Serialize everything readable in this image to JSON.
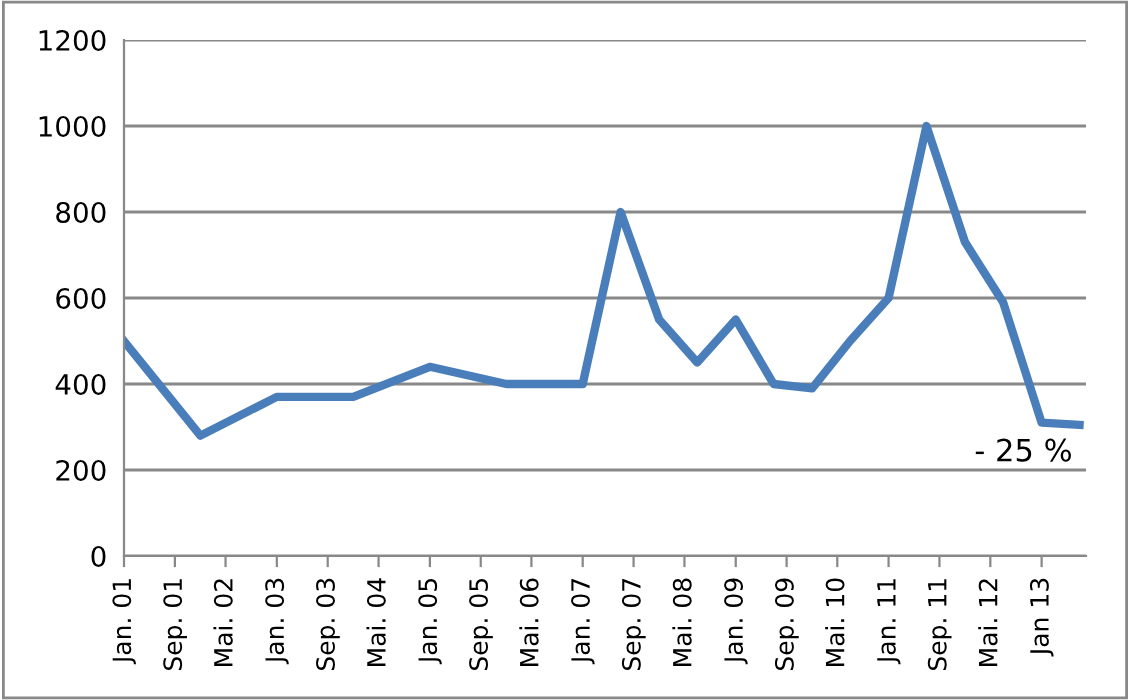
{
  "chart_data": {
    "type": "line",
    "x": [
      "2001-01",
      "2002-01",
      "2003-01",
      "2004-01",
      "2005-01",
      "2006-01",
      "2007-01",
      "2007-07",
      "2008-01",
      "2008-07",
      "2009-01",
      "2009-07",
      "2010-01",
      "2010-07",
      "2011-01",
      "2011-07",
      "2012-01",
      "2012-07",
      "2013-01",
      "2013-07"
    ],
    "series": [
      {
        "color": "#4a7ebb",
        "values": [
          500,
          280,
          370,
          370,
          440,
          400,
          400,
          800,
          550,
          450,
          550,
          400,
          390,
          500,
          600,
          1000,
          730,
          590,
          310,
          305
        ]
      }
    ],
    "xlim": [
      "2001-01",
      "2013-08"
    ],
    "xticks": [
      {
        "value": "2001-01",
        "label": "Jan. 01"
      },
      {
        "value": "2001-09",
        "label": "Sep. 01"
      },
      {
        "value": "2002-05",
        "label": "Mai. 02"
      },
      {
        "value": "2003-01",
        "label": "Jan. 03"
      },
      {
        "value": "2003-09",
        "label": "Sep. 03"
      },
      {
        "value": "2004-05",
        "label": "Mai. 04"
      },
      {
        "value": "2005-01",
        "label": "Jan. 05"
      },
      {
        "value": "2005-09",
        "label": "Sep. 05"
      },
      {
        "value": "2006-05",
        "label": "Mai. 06"
      },
      {
        "value": "2007-01",
        "label": "Jan. 07"
      },
      {
        "value": "2007-09",
        "label": "Sep. 07"
      },
      {
        "value": "2008-05",
        "label": "Mai. 08"
      },
      {
        "value": "2009-01",
        "label": "Jan. 09"
      },
      {
        "value": "2009-09",
        "label": "Sep. 09"
      },
      {
        "value": "2010-05",
        "label": "Mai. 10"
      },
      {
        "value": "2011-01",
        "label": "Jan. 11"
      },
      {
        "value": "2011-09",
        "label": "Sep. 11"
      },
      {
        "value": "2012-05",
        "label": "Mai. 12"
      },
      {
        "value": "2013-01",
        "label": "Jan 13"
      }
    ],
    "ylim": [
      0,
      1200
    ],
    "yticks": [
      0,
      200,
      400,
      600,
      800,
      1000,
      1200
    ],
    "grid": "y",
    "marker": "none",
    "line_style": "solid",
    "annotations": [
      "- 25 %"
    ]
  }
}
